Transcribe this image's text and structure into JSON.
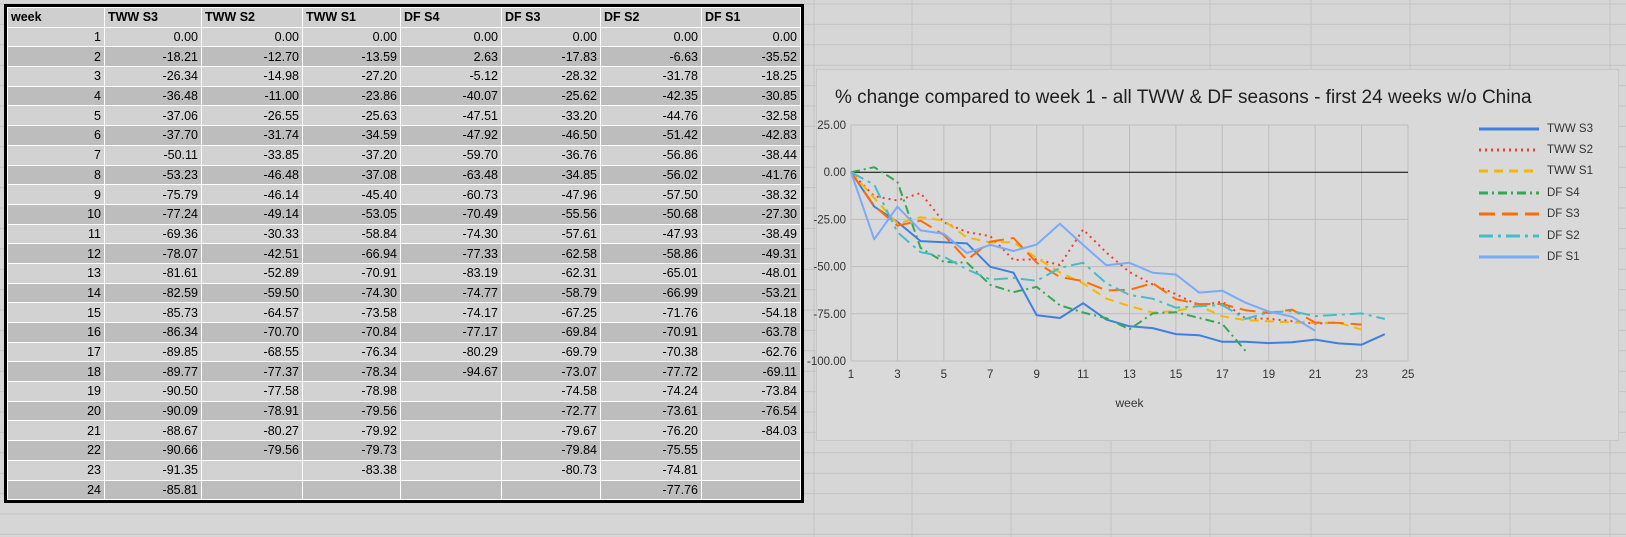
{
  "table": {
    "headers": [
      "week",
      "TWW S3",
      "TWW S2",
      "TWW S1",
      "DF S4",
      "DF S3",
      "DF S2",
      "DF S1"
    ],
    "rows": [
      [
        "1",
        "0.00",
        "0.00",
        "0.00",
        "0.00",
        "0.00",
        "0.00",
        "0.00"
      ],
      [
        "2",
        "-18.21",
        "-12.70",
        "-13.59",
        "2.63",
        "-17.83",
        "-6.63",
        "-35.52"
      ],
      [
        "3",
        "-26.34",
        "-14.98",
        "-27.20",
        "-5.12",
        "-28.32",
        "-31.78",
        "-18.25"
      ],
      [
        "4",
        "-36.48",
        "-11.00",
        "-23.86",
        "-40.07",
        "-25.62",
        "-42.35",
        "-30.85"
      ],
      [
        "5",
        "-37.06",
        "-26.55",
        "-25.63",
        "-47.51",
        "-33.20",
        "-44.76",
        "-32.58"
      ],
      [
        "6",
        "-37.70",
        "-31.74",
        "-34.59",
        "-47.92",
        "-46.50",
        "-51.42",
        "-42.83"
      ],
      [
        "7",
        "-50.11",
        "-33.85",
        "-37.20",
        "-59.70",
        "-36.76",
        "-56.86",
        "-38.44"
      ],
      [
        "8",
        "-53.23",
        "-46.48",
        "-37.08",
        "-63.48",
        "-34.85",
        "-56.02",
        "-41.76"
      ],
      [
        "9",
        "-75.79",
        "-46.14",
        "-45.40",
        "-60.73",
        "-47.96",
        "-57.50",
        "-38.32"
      ],
      [
        "10",
        "-77.24",
        "-49.14",
        "-53.05",
        "-70.49",
        "-55.56",
        "-50.68",
        "-27.30"
      ],
      [
        "11",
        "-69.36",
        "-30.33",
        "-58.84",
        "-74.30",
        "-57.61",
        "-47.93",
        "-38.49"
      ],
      [
        "12",
        "-78.07",
        "-42.51",
        "-66.94",
        "-77.33",
        "-62.58",
        "-58.86",
        "-49.31"
      ],
      [
        "13",
        "-81.61",
        "-52.89",
        "-70.91",
        "-83.19",
        "-62.31",
        "-65.01",
        "-48.01"
      ],
      [
        "14",
        "-82.59",
        "-59.50",
        "-74.30",
        "-74.77",
        "-58.79",
        "-66.99",
        "-53.21"
      ],
      [
        "15",
        "-85.73",
        "-64.57",
        "-73.58",
        "-74.17",
        "-67.25",
        "-71.76",
        "-54.18"
      ],
      [
        "16",
        "-86.34",
        "-70.70",
        "-70.84",
        "-77.17",
        "-69.84",
        "-70.91",
        "-63.78"
      ],
      [
        "17",
        "-89.85",
        "-68.55",
        "-76.34",
        "-80.29",
        "-69.79",
        "-70.38",
        "-62.76"
      ],
      [
        "18",
        "-89.77",
        "-77.37",
        "-78.34",
        "-94.67",
        "-73.07",
        "-77.72",
        "-69.11"
      ],
      [
        "19",
        "-90.50",
        "-77.58",
        "-78.98",
        "",
        "-74.58",
        "-74.24",
        "-73.84"
      ],
      [
        "20",
        "-90.09",
        "-78.91",
        "-79.56",
        "",
        "-72.77",
        "-73.61",
        "-76.54"
      ],
      [
        "21",
        "-88.67",
        "-80.27",
        "-79.92",
        "",
        "-79.67",
        "-76.20",
        "-84.03"
      ],
      [
        "22",
        "-90.66",
        "-79.56",
        "-79.73",
        "",
        "-79.84",
        "-75.55",
        ""
      ],
      [
        "23",
        "-91.35",
        "",
        "-83.38",
        "",
        "-80.73",
        "-74.81",
        ""
      ],
      [
        "24",
        "-85.81",
        "",
        "",
        "",
        "",
        "-77.76",
        ""
      ]
    ]
  },
  "chart_data": {
    "type": "line",
    "title": "% change compared to week 1 - all TWW & DF seasons - first 24 weeks w/o China",
    "xlabel": "week",
    "ylabel": "",
    "xlim": [
      1,
      25
    ],
    "ylim": [
      -100,
      25
    ],
    "x_ticks": [
      1,
      3,
      5,
      7,
      9,
      11,
      13,
      15,
      17,
      19,
      21,
      23,
      25
    ],
    "y_ticks": [
      "25.00",
      "0.00",
      "-25.00",
      "-50.00",
      "-75.00",
      "-100.00"
    ],
    "y_tick_values": [
      25,
      0,
      -25,
      -50,
      -75,
      -100
    ],
    "grid": true,
    "legend_position": "right",
    "x": [
      1,
      2,
      3,
      4,
      5,
      6,
      7,
      8,
      9,
      10,
      11,
      12,
      13,
      14,
      15,
      16,
      17,
      18,
      19,
      20,
      21,
      22,
      23,
      24
    ],
    "series": [
      {
        "name": "TWW S3",
        "color": "#3f7fe0",
        "dash": "solid",
        "values": [
          0.0,
          -18.21,
          -26.34,
          -36.48,
          -37.06,
          -37.7,
          -50.11,
          -53.23,
          -75.79,
          -77.24,
          -69.36,
          -78.07,
          -81.61,
          -82.59,
          -85.73,
          -86.34,
          -89.85,
          -89.77,
          -90.5,
          -90.09,
          -88.67,
          -90.66,
          -91.35,
          -85.81
        ]
      },
      {
        "name": "TWW S2",
        "color": "#e8423a",
        "dash": "dot",
        "values": [
          0.0,
          -12.7,
          -14.98,
          -11.0,
          -26.55,
          -31.74,
          -33.85,
          -46.48,
          -46.14,
          -49.14,
          -30.33,
          -42.51,
          -52.89,
          -59.5,
          -64.57,
          -70.7,
          -68.55,
          -77.37,
          -77.58,
          -78.91,
          -80.27,
          -79.56,
          null,
          null
        ]
      },
      {
        "name": "TWW S1",
        "color": "#f5b800",
        "dash": "dash",
        "values": [
          0.0,
          -13.59,
          -27.2,
          -23.86,
          -25.63,
          -34.59,
          -37.2,
          -37.08,
          -45.4,
          -53.05,
          -58.84,
          -66.94,
          -70.91,
          -74.3,
          -73.58,
          -70.84,
          -76.34,
          -78.34,
          -78.98,
          -79.56,
          -79.92,
          -79.73,
          -83.38,
          null
        ]
      },
      {
        "name": "DF S4",
        "color": "#34a853",
        "dash": "dashdot",
        "values": [
          0.0,
          2.63,
          -5.12,
          -40.07,
          -47.51,
          -47.92,
          -59.7,
          -63.48,
          -60.73,
          -70.49,
          -74.3,
          -77.33,
          -83.19,
          -74.77,
          -74.17,
          -77.17,
          -80.29,
          -94.67,
          null,
          null,
          null,
          null,
          null,
          null
        ]
      },
      {
        "name": "DF S3",
        "color": "#ff6d01",
        "dash": "longdash",
        "values": [
          0.0,
          -17.83,
          -28.32,
          -25.62,
          -33.2,
          -46.5,
          -36.76,
          -34.85,
          -47.96,
          -55.56,
          -57.61,
          -62.58,
          -62.31,
          -58.79,
          -67.25,
          -69.84,
          -69.79,
          -73.07,
          -74.58,
          -72.77,
          -79.67,
          -79.84,
          -80.73,
          null
        ]
      },
      {
        "name": "DF S2",
        "color": "#46bdc6",
        "dash": "longdashdot",
        "values": [
          0.0,
          -6.63,
          -31.78,
          -42.35,
          -44.76,
          -51.42,
          -56.86,
          -56.02,
          -57.5,
          -50.68,
          -47.93,
          -58.86,
          -65.01,
          -66.99,
          -71.76,
          -70.91,
          -70.38,
          -77.72,
          -74.24,
          -73.61,
          -76.2,
          -75.55,
          -74.81,
          -77.76
        ]
      },
      {
        "name": "DF S1",
        "color": "#7baaf7",
        "dash": "solid",
        "values": [
          0.0,
          -35.52,
          -18.25,
          -30.85,
          -32.58,
          -42.83,
          -38.44,
          -41.76,
          -38.32,
          -27.3,
          -38.49,
          -49.31,
          -48.01,
          -53.21,
          -54.18,
          -63.78,
          -62.76,
          -69.11,
          -73.84,
          -76.54,
          -84.03,
          null,
          null,
          null
        ]
      }
    ]
  }
}
